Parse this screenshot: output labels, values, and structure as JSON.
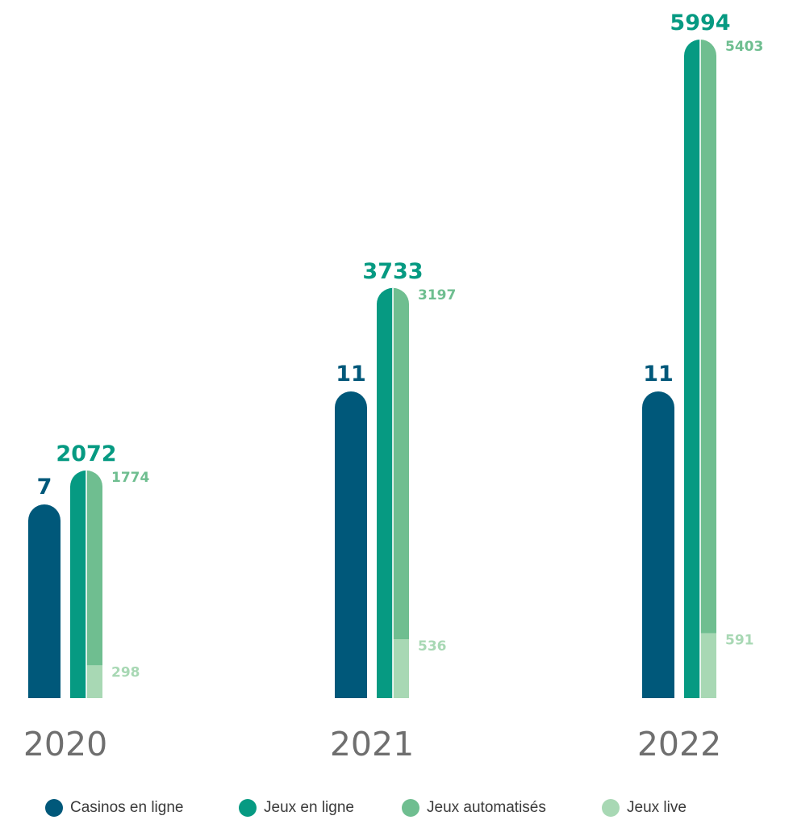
{
  "colors": {
    "casinos": "#00587a",
    "jeux_en_ligne": "#069a82",
    "jeux_automatises": "#6fbe90",
    "jeux_live": "#a8d8b4",
    "year_label": "#6f6f6f"
  },
  "chart_data": {
    "type": "bar",
    "categories": [
      "2020",
      "2021",
      "2022"
    ],
    "groups": [
      {
        "year": "2020",
        "casinos": 7,
        "jeux_en_ligne": 2072,
        "jeux_automatises": 1774,
        "jeux_live": 298
      },
      {
        "year": "2021",
        "casinos": 11,
        "jeux_en_ligne": 3733,
        "jeux_automatises": 3197,
        "jeux_live": 536
      },
      {
        "year": "2022",
        "casinos": 11,
        "jeux_en_ligne": 5994,
        "jeux_automatises": 5403,
        "jeux_live": 591
      }
    ],
    "series": [
      {
        "name": "Casinos en ligne",
        "key": "casinos",
        "values": [
          7,
          11,
          11
        ],
        "color": "#00587a"
      },
      {
        "name": "Jeux en ligne",
        "key": "jeux_en_ligne",
        "values": [
          2072,
          3733,
          5994
        ],
        "color": "#069a82"
      },
      {
        "name": "Jeux automatisés",
        "key": "jeux_automatises",
        "values": [
          1774,
          3197,
          5403
        ],
        "color": "#6fbe90"
      },
      {
        "name": "Jeux live",
        "key": "jeux_live",
        "values": [
          298,
          536,
          591
        ],
        "color": "#a8d8b4"
      }
    ],
    "stacked_note": "Jeux automatisés and Jeux live stack to form the Jeux en ligne total",
    "legend_position": "bottom",
    "grid": false
  },
  "legend": {
    "items": [
      {
        "label": "Casinos en ligne",
        "color": "#00587a"
      },
      {
        "label": "Jeux en ligne",
        "color": "#069a82"
      },
      {
        "label": "Jeux automatisés",
        "color": "#6fbe90"
      },
      {
        "label": "Jeux live",
        "color": "#a8d8b4"
      }
    ]
  }
}
